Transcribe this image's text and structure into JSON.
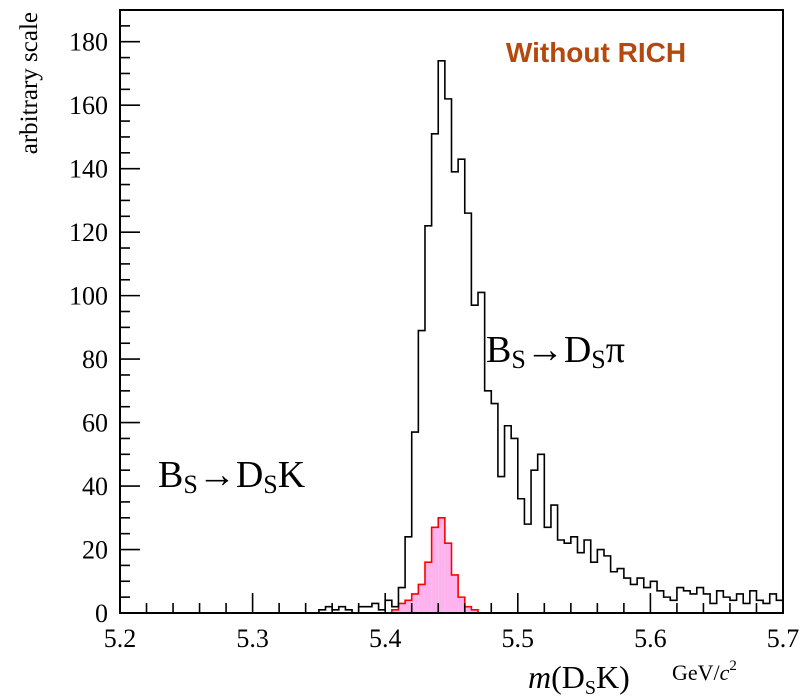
{
  "chart_data": {
    "type": "histogram",
    "title": "Without RICH",
    "title_color": "#b5480f",
    "xlabel_prefix": "m",
    "xlabel_main": "(D",
    "xlabel_sub": "S",
    "xlabel_end": "K)",
    "xunit_prefix": "GeV/",
    "xunit_c": "c",
    "xunit_sup": "2",
    "ylabel": "arbitrary scale",
    "xlim": [
      5.2,
      5.7
    ],
    "ylim": [
      0,
      190
    ],
    "xticks": [
      5.2,
      5.3,
      5.4,
      5.5,
      5.6,
      5.7
    ],
    "xtick_labels": [
      "5.2",
      "5.3",
      "5.4",
      "5.5",
      "5.6",
      "5.7"
    ],
    "yticks": [
      0,
      20,
      40,
      60,
      80,
      100,
      120,
      140,
      160,
      180
    ],
    "ytick_labels": [
      "0",
      "20",
      "40",
      "60",
      "80",
      "100",
      "120",
      "140",
      "160",
      "180"
    ],
    "grid": false,
    "bin_start": 5.2,
    "bin_width": 0.005,
    "series": [
      {
        "label_main_1": "B",
        "label_sub_1": "S",
        "label_arrow": "→D",
        "label_sub_2": "S",
        "label_end": "π",
        "color": "#000000",
        "fill": "none",
        "values": [
          0,
          0,
          0,
          0,
          0,
          0,
          0,
          0,
          0,
          0,
          0,
          0,
          0,
          0,
          0,
          0,
          0,
          0,
          0,
          0,
          0,
          0,
          0,
          0,
          0,
          0,
          0,
          0,
          0,
          0,
          1,
          2,
          1,
          2,
          1,
          0,
          2,
          2,
          3,
          1,
          4,
          2,
          8,
          24,
          57,
          89,
          122,
          151,
          174,
          162,
          139,
          143,
          126,
          97,
          101,
          70,
          66,
          43,
          59,
          55,
          36,
          28,
          45,
          50,
          27,
          34,
          23,
          22,
          24,
          19,
          23,
          16,
          20,
          18,
          13,
          14,
          11,
          9,
          11,
          8,
          10,
          7,
          5,
          4,
          8,
          7,
          6,
          8,
          6,
          3,
          7,
          5,
          4,
          6,
          3,
          7,
          4,
          3,
          6,
          4
        ]
      },
      {
        "label_main_1": "B",
        "label_sub_1": "S",
        "label_arrow": "→D",
        "label_sub_2": "K",
        "label_sub_2_text": "S",
        "label_end": "K",
        "color": "#ff0000",
        "fill": "#ffb3ee",
        "values": [
          0,
          0,
          0,
          0,
          0,
          0,
          0,
          0,
          0,
          0,
          0,
          0,
          0,
          0,
          0,
          0,
          0,
          0,
          0,
          0,
          0,
          0,
          0,
          0,
          0,
          0,
          0,
          0,
          0,
          0,
          0,
          0,
          0,
          0,
          0,
          0,
          0,
          0,
          0,
          0,
          0,
          1,
          3,
          4,
          6,
          9,
          16,
          27,
          30,
          22,
          12,
          5,
          2,
          1,
          0,
          0,
          0,
          0,
          0,
          0,
          0,
          0,
          0,
          0,
          0,
          0,
          0,
          0,
          0,
          0,
          0,
          0,
          0,
          0,
          0,
          0,
          0,
          0,
          0,
          0,
          0,
          0,
          0,
          0,
          0,
          0,
          0,
          0,
          0,
          0,
          0,
          0,
          0,
          0,
          0,
          0,
          0,
          0,
          0,
          0
        ]
      }
    ]
  }
}
